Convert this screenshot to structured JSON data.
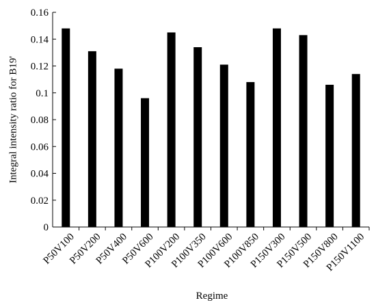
{
  "chart_data": {
    "type": "bar",
    "title": "",
    "xlabel": "Regime",
    "ylabel": "Integral intensity ratio for B19'",
    "ylim": [
      0,
      0.16
    ],
    "yticks": [
      "0",
      "0.02",
      "0.04",
      "0.06",
      "0.08",
      "0.1",
      "0.12",
      "0.14",
      "0.16"
    ],
    "grid": false,
    "legend": "none",
    "bar_color": "#000000",
    "categories": [
      "P50V100",
      "P50V200",
      "P50V400",
      "P50V600",
      "P100V200",
      "P100V350",
      "P100V600",
      "P100V850",
      "P150V300",
      "P150V500",
      "P150V800",
      "P150V1100"
    ],
    "values": [
      0.148,
      0.131,
      0.118,
      0.096,
      0.145,
      0.134,
      0.121,
      0.108,
      0.148,
      0.143,
      0.106,
      0.114
    ]
  }
}
